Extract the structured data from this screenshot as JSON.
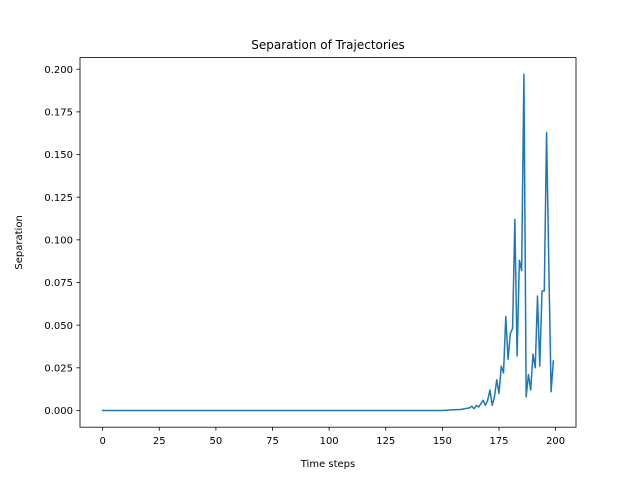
{
  "chart_data": {
    "type": "line",
    "title": "Separation of Trajectories",
    "xlabel": "Time steps",
    "ylabel": "Separation",
    "xlim": [
      -10,
      209
    ],
    "ylim": [
      -0.0098,
      0.2068
    ],
    "xticks": [
      0,
      25,
      50,
      75,
      100,
      125,
      150,
      175,
      200
    ],
    "yticks": [
      0.0,
      0.025,
      0.05,
      0.075,
      0.1,
      0.125,
      0.15,
      0.175,
      0.2
    ],
    "xtick_labels": [
      "0",
      "25",
      "50",
      "75",
      "100",
      "125",
      "150",
      "175",
      "200"
    ],
    "ytick_labels": [
      "0.000",
      "0.025",
      "0.050",
      "0.075",
      "0.100",
      "0.125",
      "0.150",
      "0.175",
      "0.200"
    ],
    "grid": false,
    "legend": "none",
    "series": [
      {
        "color": "#1f77b4",
        "x": [
          0,
          150,
          155,
          158,
          160,
          162,
          163,
          164,
          165,
          166,
          167,
          168,
          169,
          170,
          171,
          172,
          173,
          174,
          175,
          176,
          177,
          178,
          179,
          180,
          181,
          182,
          183,
          184,
          185,
          186,
          187,
          188,
          189,
          190,
          191,
          192,
          193,
          194,
          195,
          196,
          197,
          198,
          199
        ],
        "y": [
          0.0,
          0.0,
          0.0004,
          0.0006,
          0.001,
          0.0015,
          0.0025,
          0.001,
          0.003,
          0.002,
          0.004,
          0.006,
          0.003,
          0.006,
          0.012,
          0.003,
          0.008,
          0.018,
          0.01,
          0.026,
          0.022,
          0.055,
          0.03,
          0.045,
          0.048,
          0.112,
          0.032,
          0.088,
          0.082,
          0.197,
          0.008,
          0.021,
          0.012,
          0.033,
          0.025,
          0.067,
          0.026,
          0.07,
          0.07,
          0.163,
          0.085,
          0.011,
          0.029
        ]
      }
    ]
  }
}
